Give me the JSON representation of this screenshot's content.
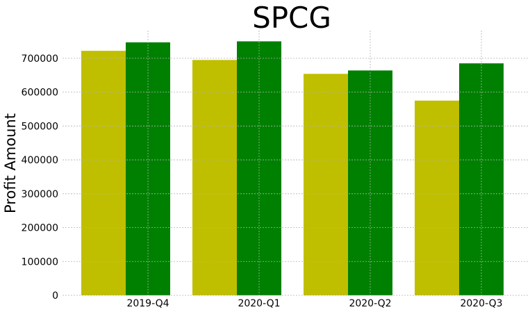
{
  "chart_data": {
    "type": "bar",
    "title": "SPCG",
    "xlabel": "",
    "ylabel": "Profit Amount",
    "categories": [
      "2019-Q4",
      "2020-Q1",
      "2020-Q2",
      "2020-Q3"
    ],
    "series": [
      {
        "values": [
          722000,
          695000,
          654000,
          575000
        ],
        "color": "#bfbf00"
      },
      {
        "values": [
          747000,
          750000,
          664000,
          685000
        ],
        "color": "#008000"
      }
    ],
    "yticks": [
      0,
      100000,
      200000,
      300000,
      400000,
      500000,
      600000,
      700000
    ],
    "ytick_labels": [
      "0",
      "100000",
      "200000",
      "300000",
      "400000",
      "500000",
      "600000",
      "700000"
    ],
    "ylim": [
      0,
      790000
    ],
    "grid": true,
    "legend": "none"
  }
}
